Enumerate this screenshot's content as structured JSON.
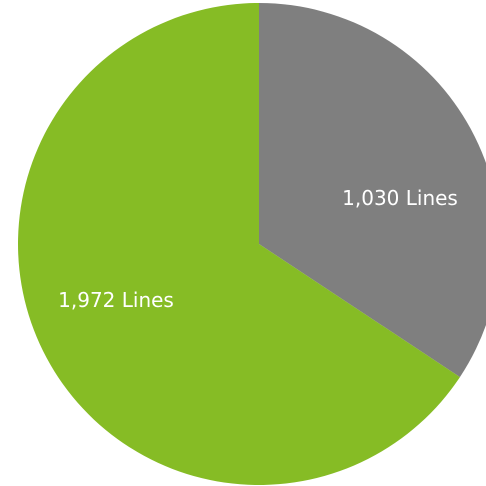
{
  "chart_data": {
    "type": "pie",
    "slices": [
      {
        "value": 1030,
        "label": "1,030 Lines",
        "color": "#7f7f7f"
      },
      {
        "value": 1972,
        "label": "1,972 Lines",
        "color": "#86bc25"
      }
    ],
    "start_angle_deg": 0,
    "direction": "clockwise"
  }
}
